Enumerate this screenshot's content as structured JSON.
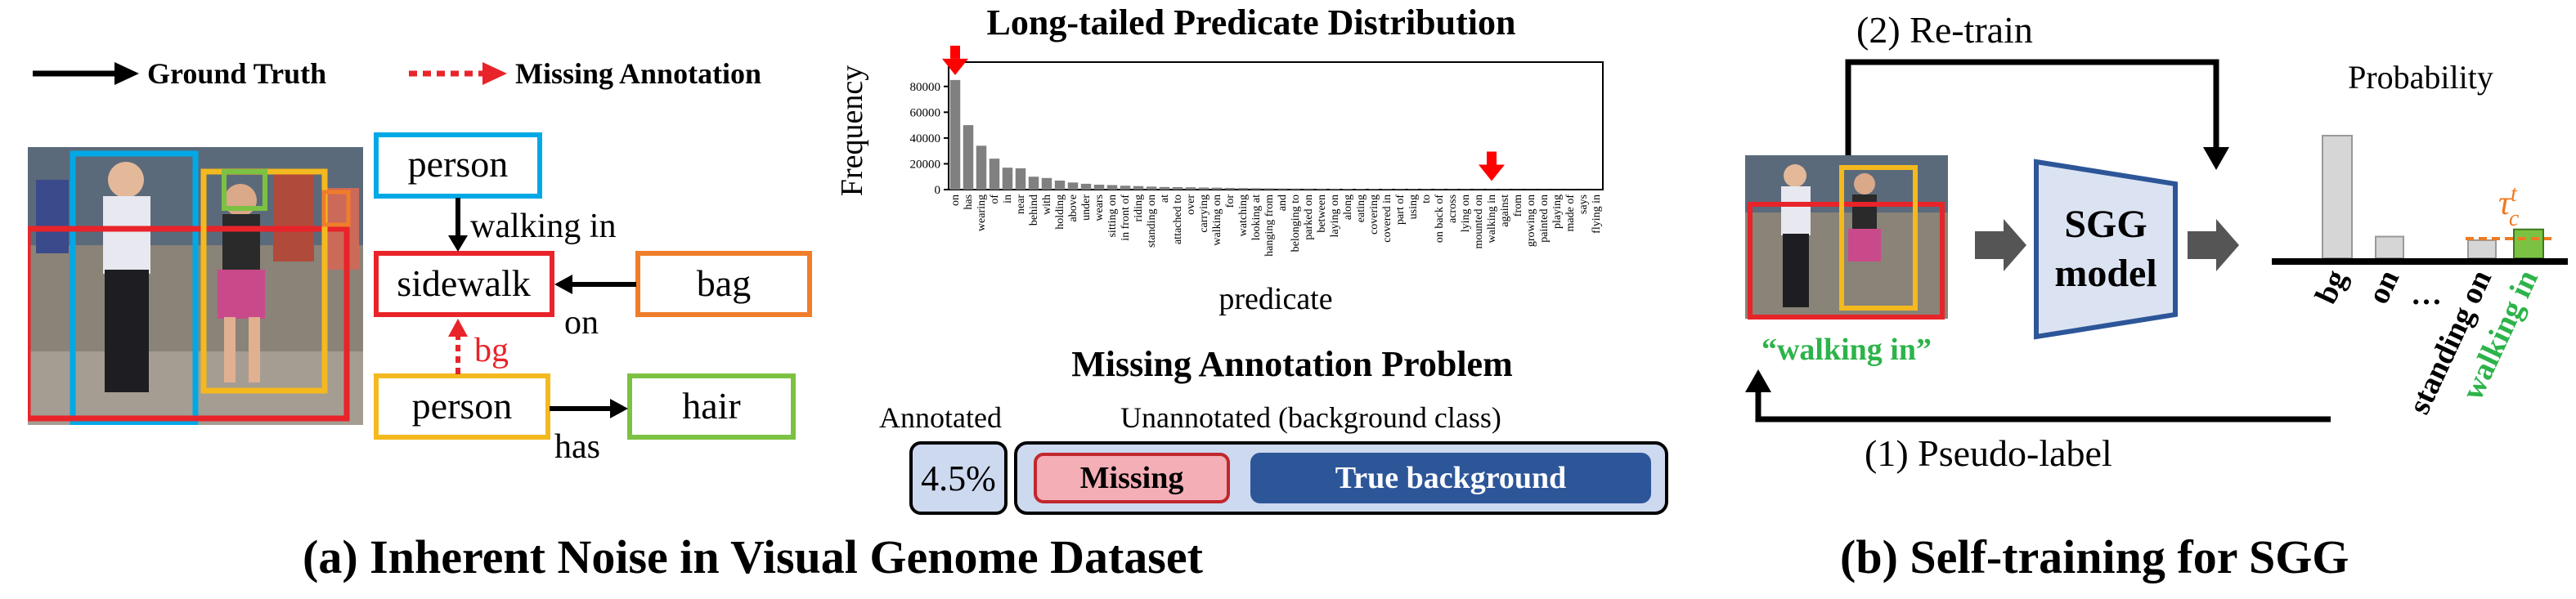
{
  "panel_a": {
    "caption": "(a) Inherent Noise in Visual Genome Dataset",
    "legend": {
      "ground_truth": "Ground Truth",
      "missing_annotation": "Missing Annotation"
    },
    "graph": {
      "nodes": {
        "person_top": "person",
        "sidewalk": "sidewalk",
        "bag": "bag",
        "person_bottom": "person",
        "hair": "hair"
      },
      "edges": {
        "walking_in": "walking in",
        "on": "on",
        "bg": "bg",
        "has": "has"
      }
    },
    "problem": {
      "title": "Missing Annotation Problem",
      "annotated_label": "Annotated",
      "unannotated_label": "Unannotated (background class)",
      "annotated_value": "4.5%",
      "missing": "Missing",
      "true_background": "True background"
    }
  },
  "chart_data": {
    "type": "bar",
    "title": "Long-tailed Predicate Distribution",
    "xlabel": "predicate",
    "ylabel": "Frequency",
    "ylim": [
      0,
      90000
    ],
    "yticks": [
      0,
      20000,
      40000,
      60000,
      80000
    ],
    "ytick_labels": [
      "0",
      "20000",
      "40000",
      "60000",
      "80000"
    ],
    "categories": [
      "on",
      "has",
      "wearing",
      "of",
      "in",
      "near",
      "behind",
      "with",
      "holding",
      "above",
      "under",
      "wears",
      "sitting on",
      "in front of",
      "riding",
      "standing on",
      "at",
      "attached to",
      "over",
      "carrying",
      "walking on",
      "for",
      "watching",
      "looking at",
      "hanging from",
      "and",
      "belonging to",
      "parked on",
      "between",
      "laying on",
      "along",
      "eating",
      "covering",
      "covered in",
      "part of",
      "using",
      "to",
      "on back of",
      "across",
      "lying on",
      "mounted on",
      "walking in",
      "against",
      "from",
      "growing on",
      "painted on",
      "playing",
      "made of",
      "says",
      "flying in"
    ],
    "values": [
      85000,
      50000,
      34000,
      24000,
      17000,
      16500,
      10000,
      9000,
      7000,
      5500,
      4500,
      3800,
      3500,
      3000,
      2700,
      2300,
      2000,
      1900,
      1800,
      1600,
      1500,
      1300,
      1200,
      1100,
      1000,
      900,
      850,
      800,
      750,
      700,
      650,
      600,
      580,
      550,
      500,
      470,
      450,
      420,
      400,
      380,
      350,
      320,
      300,
      280,
      260,
      240,
      220,
      200,
      180,
      160
    ],
    "highlighted": [
      "on",
      "walking in"
    ],
    "bar_color": "#808080",
    "marker_color": "#ff0000"
  },
  "panel_b": {
    "caption": "(b) Self-training for SGG",
    "retrain": "(2) Re-train",
    "pseudo_label": "(1) Pseudo-label",
    "model_line1": "SGG",
    "model_line2": "model",
    "probability": "Probability",
    "predicted_label": "“walking in”",
    "threshold_symbol": "τ",
    "threshold_sup": "t",
    "threshold_sub": "c",
    "classes": [
      "bg",
      "on",
      "…",
      "standing on",
      "walking in"
    ],
    "prob_values": [
      0.68,
      0.12,
      0.0,
      0.1,
      0.16
    ]
  },
  "colors": {
    "blue_box": "#00a9e6",
    "red_box": "#e8242a",
    "orange_box": "#f07d2a",
    "yellow_box": "#f4b91f",
    "green_box": "#7cc242",
    "navy": "#2d5699",
    "pink": "#f4aeb6",
    "panel_blue": "#cdd9ef",
    "green_text": "#2db34a",
    "orange_text": "#ee7a22"
  }
}
